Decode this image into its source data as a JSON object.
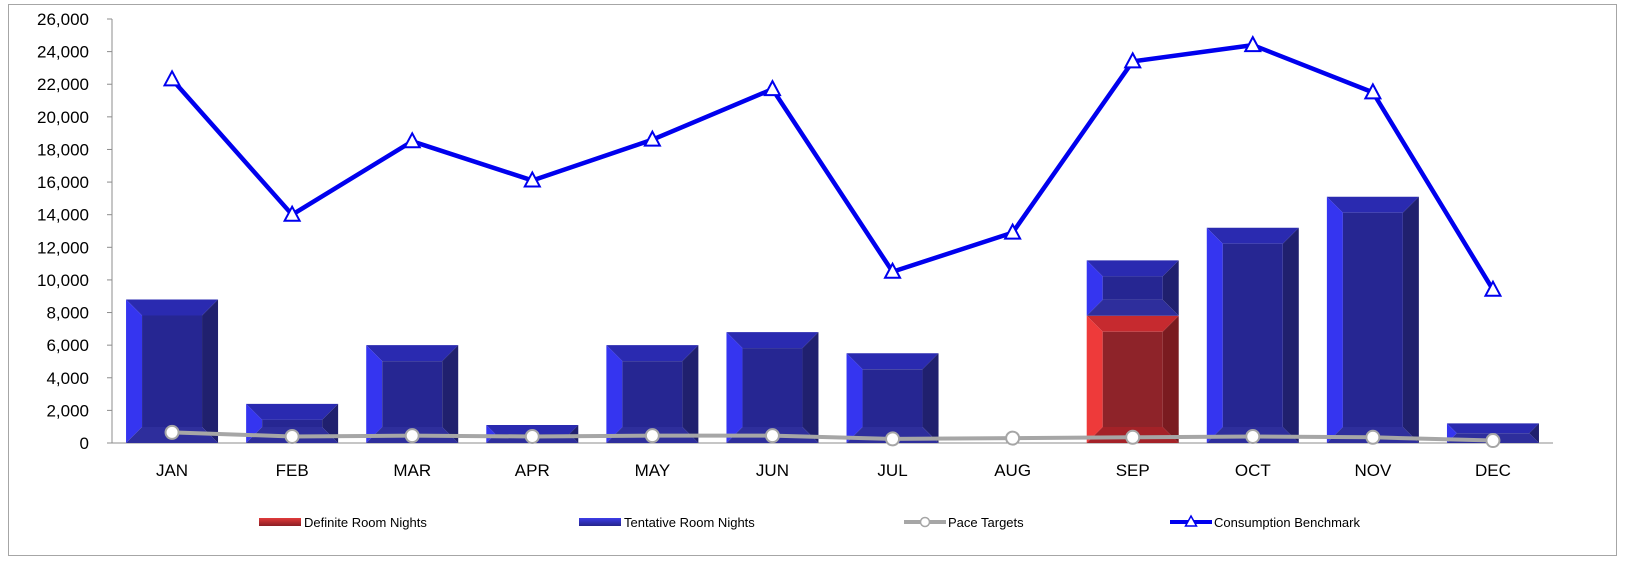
{
  "chart_data": {
    "type": "bar",
    "categories": [
      "JAN",
      "FEB",
      "MAR",
      "APR",
      "MAY",
      "JUN",
      "JUL",
      "AUG",
      "SEP",
      "OCT",
      "NOV",
      "DEC"
    ],
    "ylim": [
      0,
      26000
    ],
    "yticks": [
      0,
      2000,
      4000,
      6000,
      8000,
      10000,
      12000,
      14000,
      16000,
      18000,
      20000,
      22000,
      24000,
      26000
    ],
    "ytick_labels": [
      "0",
      "2,000",
      "4,000",
      "6,000",
      "8,000",
      "10,000",
      "12,000",
      "14,000",
      "16,000",
      "18,000",
      "20,000",
      "22,000",
      "24,000",
      "26,000"
    ],
    "stacked": true,
    "series": [
      {
        "name": "Definite Room Nights",
        "kind": "bar",
        "color": "#c0272d",
        "values": [
          0,
          0,
          0,
          0,
          0,
          0,
          0,
          0,
          7800,
          0,
          0,
          0
        ]
      },
      {
        "name": "Tentative Room Nights",
        "kind": "bar",
        "color": "#2b2ba0",
        "values": [
          8800,
          2400,
          6000,
          1100,
          6000,
          6800,
          5500,
          0,
          3400,
          13200,
          15100,
          1200
        ]
      },
      {
        "name": "Pace Targets",
        "kind": "line",
        "color": "#a6a6a6",
        "values": [
          650,
          400,
          450,
          400,
          450,
          450,
          250,
          300,
          350,
          400,
          350,
          150
        ]
      },
      {
        "name": "Consumption Benchmark",
        "kind": "line",
        "color": "#0000ee",
        "values": [
          22300,
          14000,
          18500,
          16100,
          18600,
          21700,
          10500,
          12900,
          23400,
          24400,
          21500,
          9400
        ]
      }
    ],
    "legend_position": "bottom",
    "grid": false
  }
}
